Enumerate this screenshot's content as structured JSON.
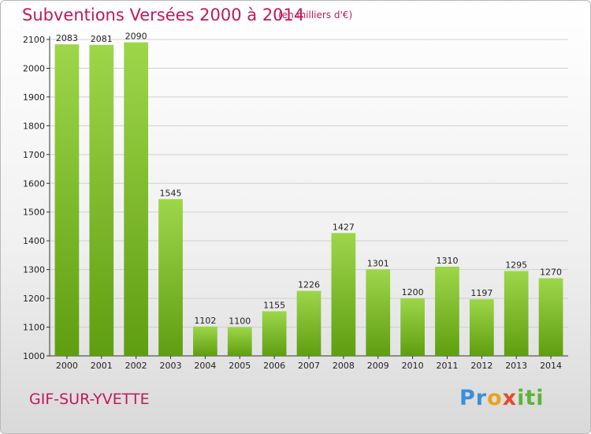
{
  "header": {
    "title": "Subventions Versées 2000 à 2014",
    "subtitle": "(en milliers d'€)"
  },
  "footer": {
    "city": "GIF-SUR-YVETTE",
    "logo_text": "Proxiti"
  },
  "colors": {
    "title": "#c2185b",
    "bar_top": "#9ed64a",
    "bar_bottom": "#5f9e10",
    "grid": "#cfcfcf"
  },
  "chart_data": {
    "type": "bar",
    "title": "Subventions Versées 2000 à 2014",
    "subtitle": "(en milliers d'€)",
    "xlabel": "",
    "ylabel": "",
    "categories": [
      "2000",
      "2001",
      "2002",
      "2003",
      "2004",
      "2005",
      "2006",
      "2007",
      "2008",
      "2009",
      "2010",
      "2011",
      "2012",
      "2013",
      "2014"
    ],
    "values": [
      2083,
      2081,
      2090,
      1545,
      1102,
      1100,
      1155,
      1226,
      1427,
      1301,
      1200,
      1310,
      1197,
      1295,
      1270
    ],
    "ylim": [
      1000,
      2100
    ],
    "yticks": [
      1000,
      1100,
      1200,
      1300,
      1400,
      1500,
      1600,
      1700,
      1800,
      1900,
      2000,
      2100
    ],
    "grid": true,
    "legend": "none"
  }
}
